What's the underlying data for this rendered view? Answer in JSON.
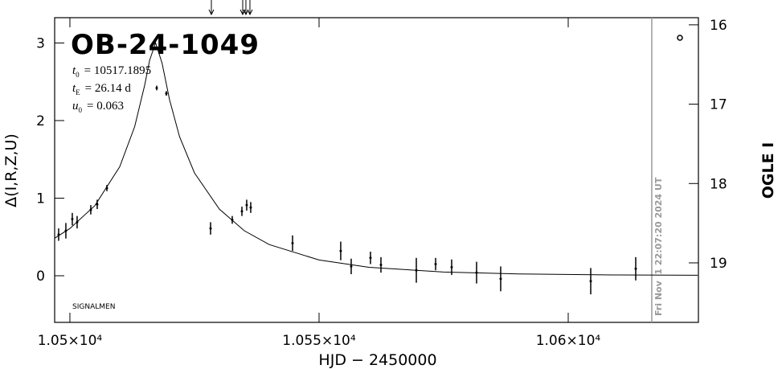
{
  "chart_data": {
    "type": "scatter",
    "title": "OB-24-1049",
    "annotations": [
      {
        "var": "t",
        "sub": "0",
        "text": "= 10517.1895"
      },
      {
        "var": "t",
        "sub": "E",
        "text": "= 26.14 d"
      },
      {
        "var": "u",
        "sub": "0",
        "text": "= 0.063"
      }
    ],
    "credit": "SIGNALMEN",
    "timestamp": "Fri Nov  1 22:07:20 2024 UT",
    "x_label": "HJD − 2450000",
    "y_label": "Δ(I,R,Z,U)",
    "y2_label": "OGLE I",
    "xlim": [
      10496.94,
      10626.13
    ],
    "xticks": [
      {
        "value": 10500,
        "label": "1.05×10⁴"
      },
      {
        "value": 10550,
        "label": "1.055×10⁴"
      },
      {
        "value": 10600,
        "label": "1.06×10⁴"
      }
    ],
    "ylim": [
      -0.601,
      3.326
    ],
    "yticks": [
      0,
      1,
      2,
      3
    ],
    "y2lim": [
      19.75,
      15.91
    ],
    "y2ticks": [
      16,
      17,
      18,
      19
    ],
    "series": [
      {
        "name": "OGLE",
        "color": "#000000",
        "x": [
          10497.74,
          10499.19,
          10500.48,
          10501.45,
          10504.19,
          10505.48,
          10507.42,
          10517.42,
          10519.35,
          10528.23,
          10532.58,
          10534.52,
          10535.48,
          10536.29,
          10544.68,
          10554.35,
          10556.45,
          10560.32,
          10562.42,
          10569.52,
          10573.39,
          10576.61,
          10581.61,
          10586.45,
          10604.52,
          10613.55
        ],
        "values": [
          0.53,
          0.58,
          0.73,
          0.69,
          0.85,
          0.92,
          1.13,
          2.42,
          2.35,
          0.61,
          0.72,
          0.83,
          0.91,
          0.88,
          0.42,
          0.32,
          0.12,
          0.23,
          0.14,
          0.07,
          0.15,
          0.11,
          0.04,
          -0.04,
          -0.07,
          0.09
        ],
        "errors": [
          0.08,
          0.1,
          0.08,
          0.08,
          0.06,
          0.06,
          0.04,
          0.03,
          0.03,
          0.08,
          0.05,
          0.06,
          0.07,
          0.07,
          0.1,
          0.12,
          0.1,
          0.08,
          0.1,
          0.16,
          0.08,
          0.1,
          0.14,
          0.16,
          0.17,
          0.15
        ]
      }
    ],
    "model": {
      "color": "#000000",
      "x": [
        10497,
        10500,
        10505,
        10510,
        10513,
        10515,
        10516,
        10517.19,
        10518.5,
        10520,
        10522,
        10525,
        10530,
        10535,
        10540,
        10550,
        10560,
        10575,
        10590,
        10610,
        10626
      ],
      "values": [
        0.486,
        0.609,
        0.903,
        1.405,
        1.922,
        2.454,
        2.777,
        3.003,
        2.739,
        2.268,
        1.793,
        1.325,
        0.858,
        0.58,
        0.402,
        0.203,
        0.109,
        0.048,
        0.023,
        0.01,
        0.006
      ]
    },
    "arrows_x": [
      10528.39,
      10534.68,
      10535.32,
      10536.13
    ],
    "now_x": 10616.77,
    "now_color": "#999999"
  }
}
